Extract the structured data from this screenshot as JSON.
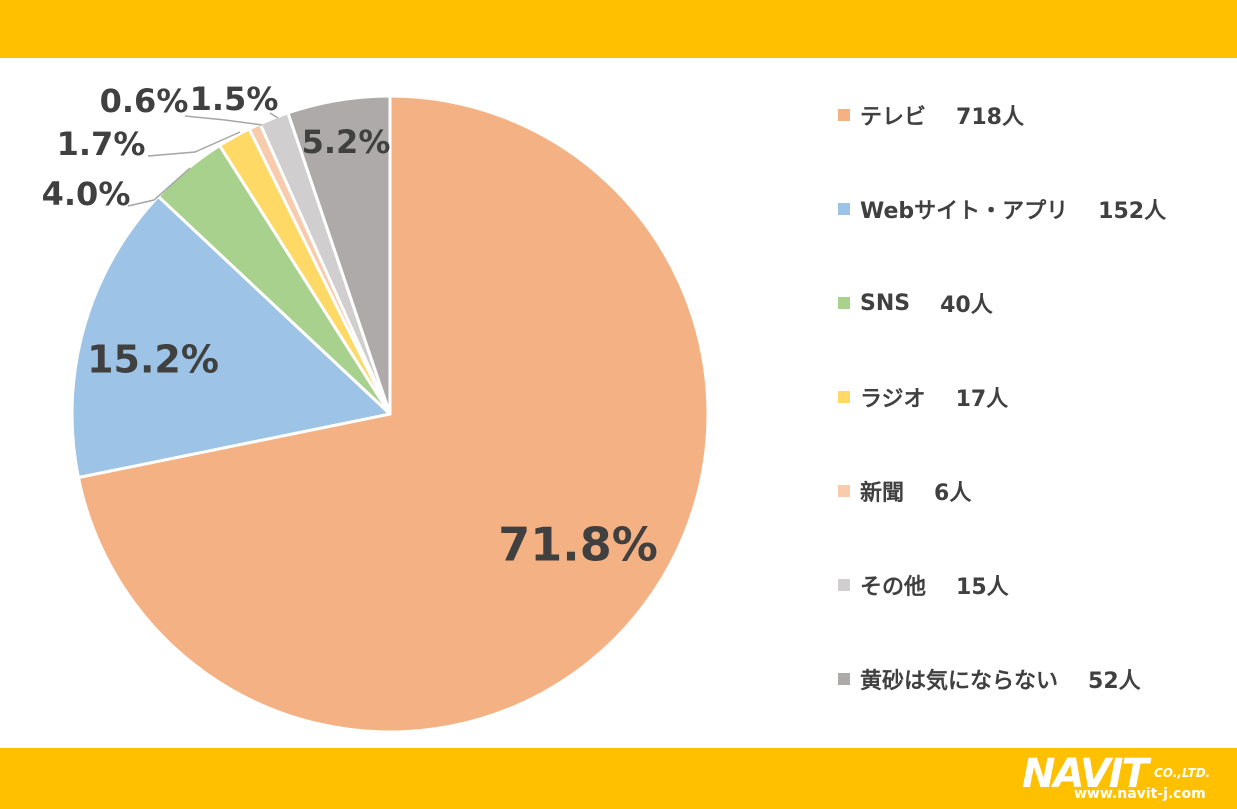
{
  "chart_data": {
    "type": "pie",
    "slices": [
      {
        "label": "テレビ",
        "count": "718人",
        "value": 71.8,
        "pct_label": "71.8%",
        "color": "#F4B183"
      },
      {
        "label": "Webサイト・アプリ",
        "count": "152人",
        "value": 15.2,
        "pct_label": "15.2%",
        "color": "#9DC3E6"
      },
      {
        "label": "SNS",
        "count": "40人",
        "value": 4.0,
        "pct_label": "4.0%",
        "color": "#A9D18E"
      },
      {
        "label": "ラジオ",
        "count": "17人",
        "value": 1.7,
        "pct_label": "1.7%",
        "color": "#FFD966"
      },
      {
        "label": "新聞",
        "count": "6人",
        "value": 0.6,
        "pct_label": "0.6%",
        "color": "#F8CBAD"
      },
      {
        "label": "その他",
        "count": "15人",
        "value": 1.5,
        "pct_label": "1.5%",
        "color": "#D0CECE"
      },
      {
        "label": "黄砂は気にならない",
        "count": "52人",
        "value": 5.2,
        "pct_label": "5.2%",
        "color": "#AEAAAA"
      }
    ],
    "legend_position": "right"
  },
  "colors": {
    "header_bar": "#FFC000",
    "footer_bar": "#FFC000",
    "label_text": "#404040"
  },
  "logo": {
    "name": "NAVIT",
    "suffix": "CO.,LTD.",
    "url": "www.navit-j.com"
  }
}
